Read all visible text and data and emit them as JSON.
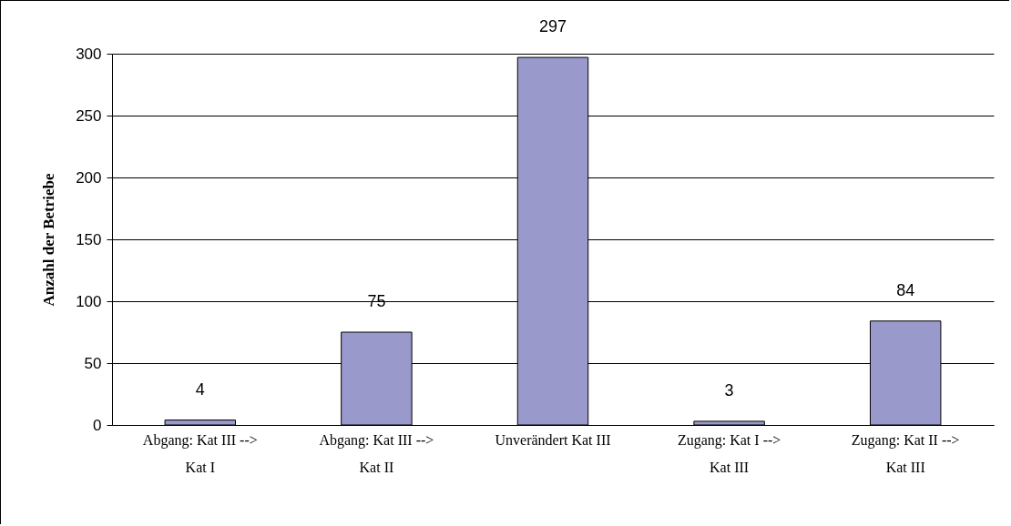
{
  "chart_data": {
    "type": "bar",
    "ylabel": "Anzahl der Betriebe",
    "categories": [
      "Abgang: Kat III --> Kat I",
      "Abgang: Kat III --> Kat II",
      "Unverändert Kat III",
      "Zugang: Kat I --> Kat III",
      "Zugang: Kat II --> Kat III"
    ],
    "values": [
      4,
      75,
      297,
      3,
      84
    ],
    "color": "#9999cc",
    "ylim": [
      0,
      300
    ],
    "yticks": [
      0,
      50,
      100,
      150,
      200,
      250,
      300
    ],
    "grid": "y",
    "data_labels": true
  }
}
